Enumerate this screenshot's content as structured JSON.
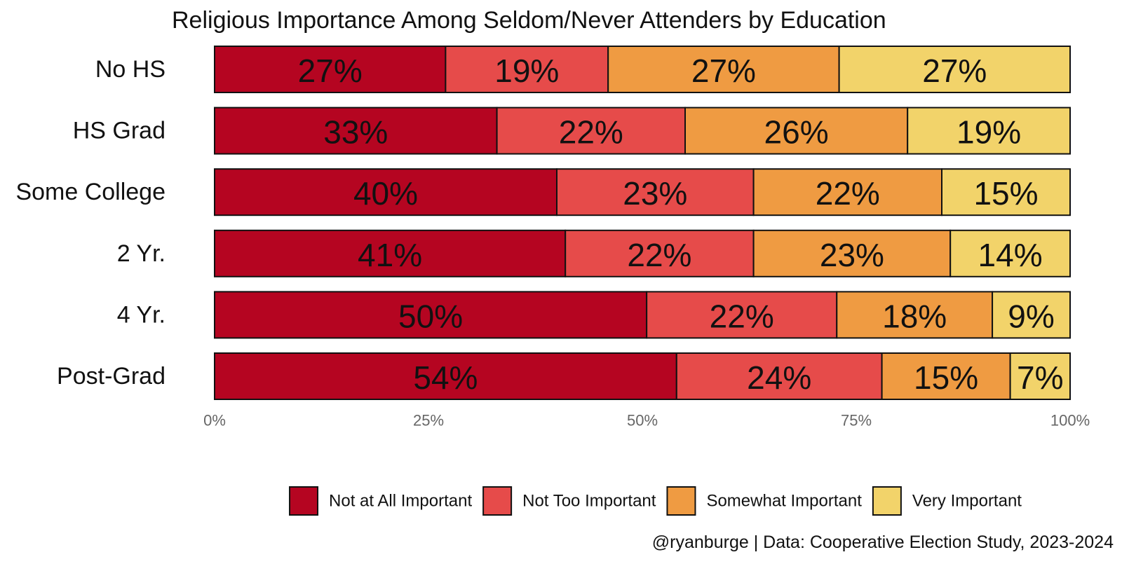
{
  "chart_data": {
    "type": "bar",
    "orientation": "horizontal",
    "stacked": true,
    "title": "Religious Importance Among Seldom/Never Attenders by Education",
    "categories": [
      "No HS",
      "HS Grad",
      "Some College",
      "2 Yr.",
      "4 Yr.",
      "Post-Grad"
    ],
    "series": [
      {
        "name": "Not at All Important",
        "color": "#b50521",
        "values": [
          27,
          33,
          40,
          41,
          50,
          54
        ]
      },
      {
        "name": "Not Too Important",
        "color": "#e64b4a",
        "values": [
          19,
          22,
          23,
          22,
          22,
          24
        ]
      },
      {
        "name": "Somewhat Important",
        "color": "#ef9b42",
        "values": [
          27,
          26,
          22,
          23,
          18,
          15
        ]
      },
      {
        "name": "Very Important",
        "color": "#f2d36a",
        "values": [
          27,
          19,
          15,
          14,
          9,
          7
        ]
      }
    ],
    "data_labels": [
      [
        "27%",
        "19%",
        "27%",
        "27%"
      ],
      [
        "33%",
        "22%",
        "26%",
        "19%"
      ],
      [
        "40%",
        "23%",
        "22%",
        "15%"
      ],
      [
        "41%",
        "22%",
        "23%",
        "14%"
      ],
      [
        "50%",
        "22%",
        "18%",
        "9%"
      ],
      [
        "54%",
        "24%",
        "15%",
        "7%"
      ]
    ],
    "xlim": [
      0,
      100
    ],
    "x_ticks": [
      0,
      25,
      50,
      75,
      100
    ],
    "x_tick_labels": [
      "0%",
      "25%",
      "50%",
      "75%",
      "100%"
    ],
    "xlabel": "",
    "ylabel": "",
    "grid": false,
    "legend_position": "bottom",
    "caption": "@ryanburge | Data: Cooperative Election Study, 2023-2024"
  }
}
